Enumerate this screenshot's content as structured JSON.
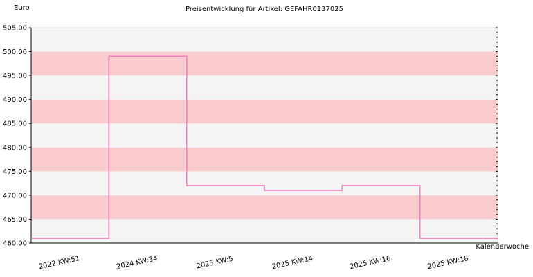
{
  "chart_data": {
    "type": "line",
    "line_style": "step",
    "title": "Preisentwicklung für Artikel: GEFAHR0137025",
    "ylabel": "Euro",
    "xlabel": "Kalenderwoche",
    "categories": [
      "2022 KW:51",
      "2024 KW:34",
      "2025 KW:5",
      "2025 KW:14",
      "2025 KW:16",
      "2025 KW:18"
    ],
    "series": [
      {
        "values": [
          461.0,
          499.0,
          472.0,
          471.0,
          472.0,
          461.0
        ]
      }
    ],
    "ylim": [
      460,
      505
    ],
    "yticks": [
      "460.00",
      "465.00",
      "470.00",
      "475.00",
      "480.00",
      "485.00",
      "490.00",
      "495.00",
      "500.00",
      "505.00"
    ],
    "grid": "alternating horizontal bands",
    "colors": {
      "line": "#f07ac0",
      "band_light": "#f4f4f4",
      "band_pink": "#f8cccc",
      "axis": "#000000"
    }
  }
}
